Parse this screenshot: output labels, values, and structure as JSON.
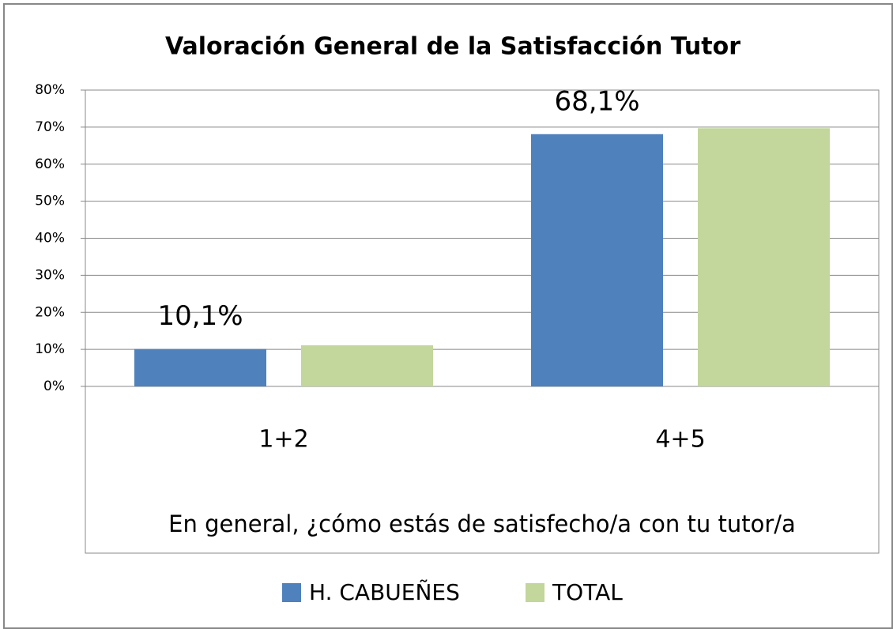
{
  "chart_data": {
    "type": "bar",
    "title": "Valoración General de la Satisfacción Tutor",
    "x_label": "En general, ¿cómo estás de satisfecho/a con tu tutor/a",
    "categories": [
      "1+2",
      "4+5"
    ],
    "series": [
      {
        "name": "H. CABUEÑES",
        "color": "#4f81bd",
        "values": [
          10.1,
          68.1
        ],
        "value_labels": [
          "10,1%",
          "68,1%"
        ]
      },
      {
        "name": "TOTAL",
        "color": "#c3d69b",
        "values": [
          11.1,
          69.7
        ]
      }
    ],
    "ylim": [
      0,
      80
    ],
    "yticks": [
      {
        "value": 0,
        "label": "0%"
      },
      {
        "value": 10,
        "label": "10%"
      },
      {
        "value": 20,
        "label": "20%"
      },
      {
        "value": 30,
        "label": "30%"
      },
      {
        "value": 40,
        "label": "40%"
      },
      {
        "value": 50,
        "label": "50%"
      },
      {
        "value": 60,
        "label": "60%"
      },
      {
        "value": 70,
        "label": "70%"
      },
      {
        "value": 80,
        "label": "80%"
      }
    ],
    "grid": true,
    "legend": "bottom"
  }
}
